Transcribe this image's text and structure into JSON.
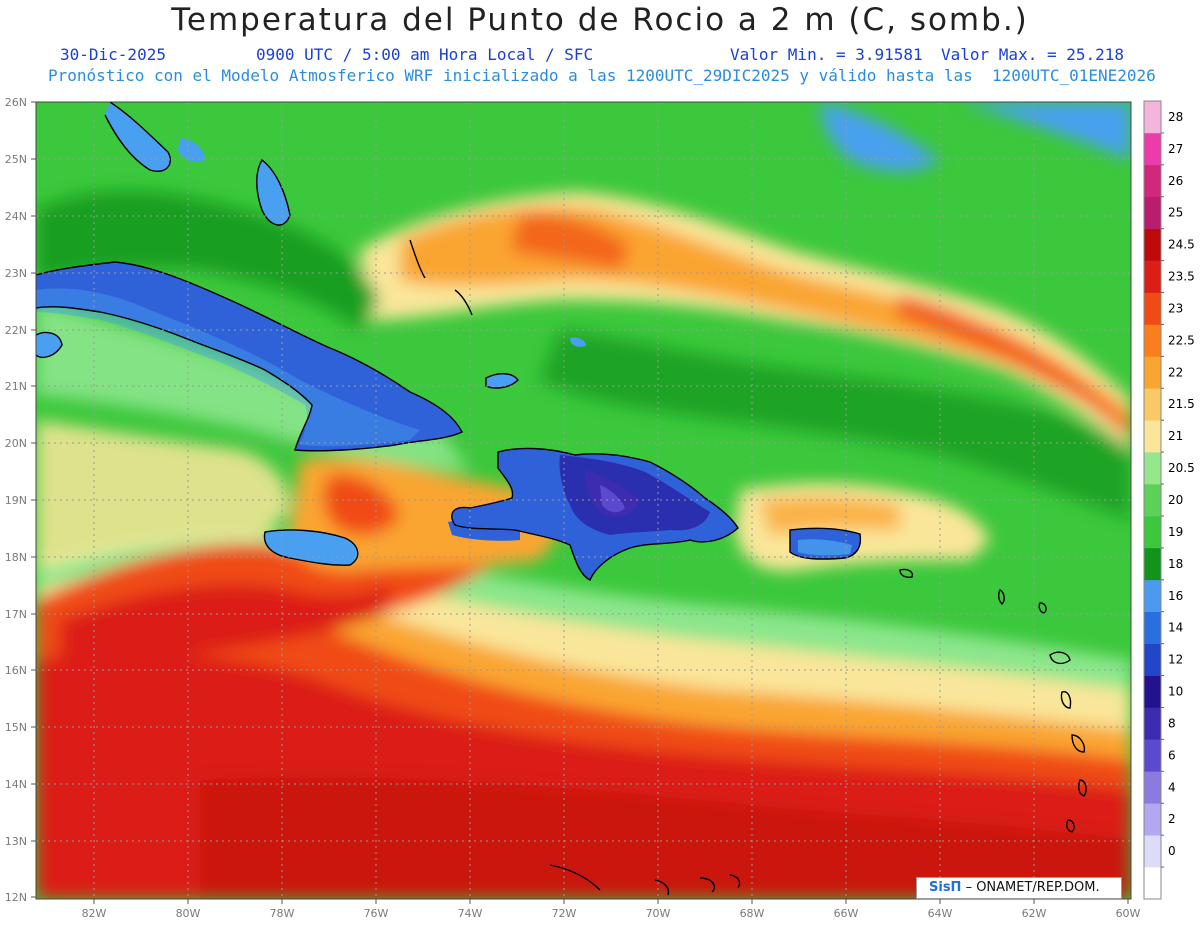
{
  "header": {
    "title": "Temperatura del Punto de Rocio a 2 m (C, somb.)",
    "date": "30-Dic-2025",
    "time_info": "0900 UTC / 5:00 am Hora Local / SFC",
    "min_label": "Valor Min. = 3.91581",
    "max_label": "Valor Max. = 25.218",
    "model_line": "Pronóstico con el Modelo Atmosferico WRF inicializado a las 1200UTC_29DIC2025 y válido hasta las  1200UTC_01ENE2026"
  },
  "axes": {
    "lat_labels": [
      "26N",
      "25N",
      "24N",
      "23N",
      "22N",
      "21N",
      "20N",
      "19N",
      "18N",
      "17N",
      "16N",
      "15N",
      "14N",
      "13N",
      "12N"
    ],
    "lon_labels": [
      "82W",
      "80W",
      "78W",
      "76W",
      "74W",
      "72W",
      "70W",
      "68W",
      "66W",
      "64W",
      "62W",
      "60W"
    ]
  },
  "colorbar": {
    "labels": [
      "0",
      "2",
      "4",
      "6",
      "8",
      "10",
      "12",
      "14",
      "16",
      "18",
      "19",
      "20",
      "20.5",
      "21",
      "21.5",
      "22",
      "22.5",
      "23",
      "23.5",
      "24.5",
      "25",
      "26",
      "27",
      "28"
    ],
    "colors": [
      "#ffffff",
      "#dcdcf8",
      "#b4a6f0",
      "#8c7ae0",
      "#5a4ad0",
      "#3d2bb0",
      "#23128e",
      "#2246c8",
      "#2a6ee0",
      "#4a9af0",
      "#12941c",
      "#3cc83c",
      "#5ad25a",
      "#96e68c",
      "#fae69a",
      "#fac864",
      "#faa532",
      "#fa7d1e",
      "#f04b14",
      "#dc1e14",
      "#be0a0a",
      "#b91e6e",
      "#d2287c",
      "#eb3caa",
      "#f5b4dc"
    ]
  },
  "credit": {
    "logo": "SisΠ",
    "text": " – ONAMET/REP.DOM."
  },
  "map_legend_colors": {
    "deep_blue": "#2a2fb0",
    "blue": "#2f62d8",
    "light_blue": "#4aa0f0",
    "dark_green": "#12941c",
    "green": "#3cc83c",
    "light_green": "#8ce68c",
    "pale_yellow": "#fae69a",
    "orange": "#faa532",
    "red_orange": "#f04b14",
    "red": "#dc1e14",
    "dark_red": "#be0a0a"
  }
}
